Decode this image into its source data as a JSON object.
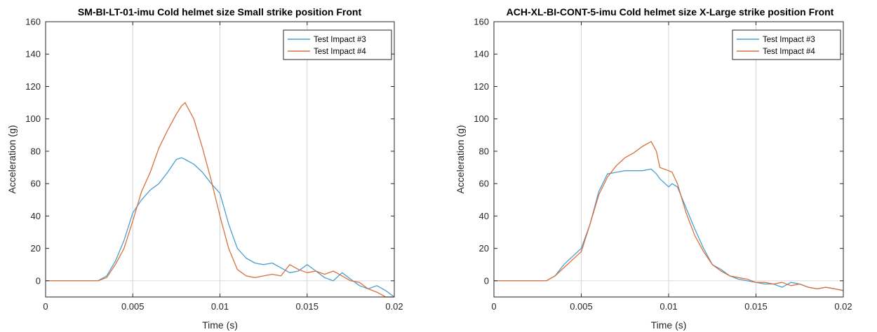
{
  "chart_data": [
    {
      "type": "line",
      "title": "SM-BI-LT-01-imu Cold helmet size Small strike position Front",
      "xlabel": "Time (s)",
      "ylabel": "Acceleration (g)",
      "xlim": [
        0,
        0.02
      ],
      "ylim": [
        -10,
        160
      ],
      "xticks": [
        0,
        0.005,
        0.01,
        0.015,
        0.02
      ],
      "xtick_labels": [
        "0",
        "0.005",
        "0.01",
        "0.015",
        "0.02"
      ],
      "yticks": [
        0,
        20,
        40,
        60,
        80,
        100,
        120,
        140,
        160
      ],
      "yticks_labels": [
        "0",
        "20",
        "40",
        "60",
        "80",
        "100",
        "120",
        "140",
        "160"
      ],
      "grid": "vertical",
      "legend_position": "top-right",
      "series": [
        {
          "name": "Test Impact #3",
          "color": "#4a9fd0",
          "x": [
            0,
            0.001,
            0.002,
            0.003,
            0.0035,
            0.004,
            0.0045,
            0.005,
            0.0055,
            0.006,
            0.0065,
            0.007,
            0.0075,
            0.0078,
            0.008,
            0.0085,
            0.009,
            0.0095,
            0.01,
            0.0105,
            0.011,
            0.0115,
            0.012,
            0.0125,
            0.013,
            0.0135,
            0.014,
            0.0145,
            0.015,
            0.0155,
            0.016,
            0.0165,
            0.017,
            0.0175,
            0.018,
            0.0185,
            0.019,
            0.0195,
            0.02
          ],
          "y": [
            0,
            0,
            0,
            0,
            3,
            12,
            25,
            42,
            50,
            56,
            60,
            67,
            75,
            76,
            75,
            72,
            67,
            60,
            54,
            35,
            20,
            14,
            11,
            10,
            11,
            8,
            5,
            6,
            10,
            6,
            2,
            0,
            5,
            1,
            -3,
            -5,
            -3,
            -6,
            -10
          ]
        },
        {
          "name": "Test Impact #4",
          "color": "#d9703e",
          "x": [
            0,
            0.001,
            0.002,
            0.003,
            0.0035,
            0.004,
            0.0045,
            0.005,
            0.0055,
            0.006,
            0.0065,
            0.007,
            0.0075,
            0.0078,
            0.008,
            0.0085,
            0.009,
            0.0095,
            0.01,
            0.0105,
            0.011,
            0.0115,
            0.012,
            0.0125,
            0.013,
            0.0135,
            0.014,
            0.0145,
            0.015,
            0.0155,
            0.016,
            0.0165,
            0.017,
            0.0175,
            0.018,
            0.0185,
            0.019,
            0.0195,
            0.02
          ],
          "y": [
            0,
            0,
            0,
            0,
            2,
            10,
            20,
            37,
            55,
            67,
            82,
            93,
            103,
            108,
            110,
            100,
            82,
            62,
            40,
            20,
            7,
            3,
            2,
            3,
            4,
            3,
            10,
            7,
            5,
            6,
            4,
            6,
            3,
            0,
            -1,
            -5,
            -7,
            -10,
            -10
          ]
        }
      ]
    },
    {
      "type": "line",
      "title": "ACH-XL-BI-CONT-5-imu Cold helmet size X-Large strike position Front",
      "xlabel": "Time (s)",
      "ylabel": "Acceleration (g)",
      "xlim": [
        0,
        0.02
      ],
      "ylim": [
        -10,
        160
      ],
      "xticks": [
        0,
        0.005,
        0.01,
        0.015,
        0.02
      ],
      "xtick_labels": [
        "0",
        "0.005",
        "0.01",
        "0.015",
        "0.02"
      ],
      "yticks": [
        0,
        20,
        40,
        60,
        80,
        100,
        120,
        140,
        160
      ],
      "yticks_labels": [
        "0",
        "20",
        "40",
        "60",
        "80",
        "100",
        "120",
        "140",
        "160"
      ],
      "grid": "vertical",
      "legend_position": "top-right",
      "series": [
        {
          "name": "Test Impact #3",
          "color": "#4a9fd0",
          "x": [
            0,
            0.001,
            0.002,
            0.003,
            0.0035,
            0.004,
            0.0045,
            0.005,
            0.0055,
            0.006,
            0.0065,
            0.007,
            0.0075,
            0.008,
            0.0085,
            0.009,
            0.0093,
            0.0095,
            0.01,
            0.0102,
            0.0105,
            0.011,
            0.0115,
            0.012,
            0.0125,
            0.013,
            0.0135,
            0.014,
            0.0145,
            0.015,
            0.0155,
            0.016,
            0.0165,
            0.017,
            0.0175,
            0.018,
            0.0185,
            0.019,
            0.0195,
            0.02
          ],
          "y": [
            0,
            0,
            0,
            0,
            3,
            10,
            15,
            20,
            35,
            55,
            66,
            67,
            68,
            68,
            68,
            69,
            66,
            63,
            58,
            60,
            58,
            45,
            32,
            20,
            10,
            7,
            3,
            1,
            0,
            -1,
            -2,
            -2,
            -4,
            -1,
            -2,
            -4,
            -5,
            -4,
            -5,
            -6
          ]
        },
        {
          "name": "Test Impact #4",
          "color": "#d9703e",
          "x": [
            0,
            0.001,
            0.002,
            0.003,
            0.0035,
            0.004,
            0.0045,
            0.005,
            0.0055,
            0.006,
            0.0065,
            0.007,
            0.0075,
            0.008,
            0.0085,
            0.009,
            0.0093,
            0.0095,
            0.01,
            0.0102,
            0.0105,
            0.011,
            0.0115,
            0.012,
            0.0125,
            0.013,
            0.0135,
            0.014,
            0.0145,
            0.015,
            0.0155,
            0.016,
            0.0165,
            0.017,
            0.0175,
            0.018,
            0.0185,
            0.019,
            0.0195,
            0.02
          ],
          "y": [
            0,
            0,
            0,
            0,
            3,
            8,
            13,
            18,
            35,
            53,
            64,
            71,
            76,
            79,
            83,
            86,
            80,
            70,
            68,
            67,
            60,
            42,
            28,
            18,
            10,
            6,
            3,
            2,
            1,
            -1,
            -1,
            -2,
            -1,
            -3,
            -2,
            -4,
            -5,
            -4,
            -5,
            -6
          ]
        }
      ]
    }
  ]
}
